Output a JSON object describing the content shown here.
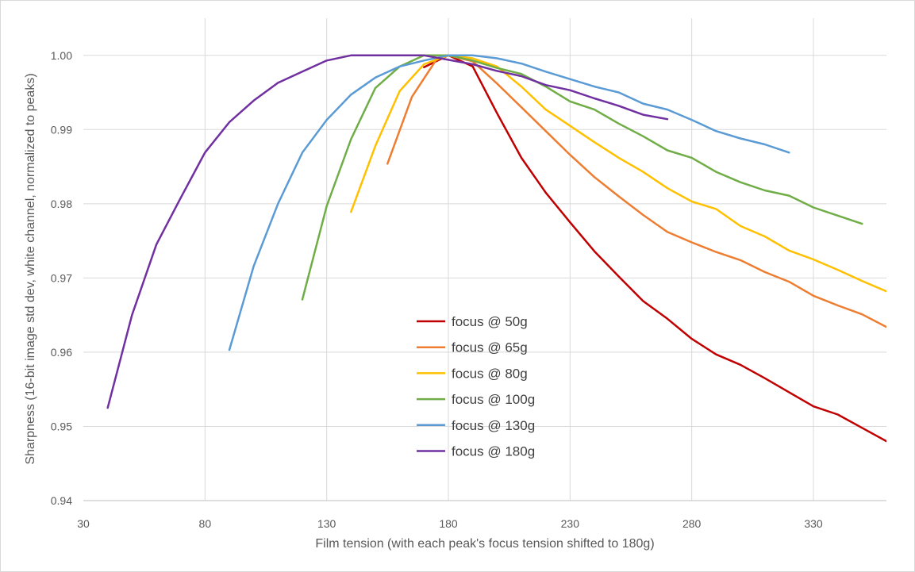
{
  "chart_data": {
    "type": "line",
    "title": "",
    "xlabel": "Film tension (with each peak's focus tension shifted to 180g)",
    "ylabel": "Sharpness (16-bit image std dev, white channel, normalized to peaks)",
    "xlim": [
      30,
      360
    ],
    "ylim": [
      0.94,
      1.005
    ],
    "x_ticks": [
      30,
      80,
      130,
      180,
      230,
      280,
      330
    ],
    "y_ticks": [
      0.94,
      0.95,
      0.96,
      0.97,
      0.98,
      0.99,
      1.0
    ],
    "x_tick_labels": [
      "30",
      "80",
      "130",
      "180",
      "230",
      "280",
      "330"
    ],
    "y_tick_labels": [
      "0.94",
      "0.95",
      "0.96",
      "0.97",
      "0.98",
      "0.99",
      "1.00"
    ],
    "grid": {
      "vertical": true,
      "horizontal": true
    },
    "legend": {
      "position": "center-bottom"
    },
    "series": [
      {
        "name": "focus @ 50g",
        "color": "#C00000",
        "points": [
          [
            170,
            0.9984
          ],
          [
            180,
            1.0
          ],
          [
            190,
            0.9985
          ],
          [
            200,
            0.9922
          ],
          [
            210,
            0.9862
          ],
          [
            220,
            0.9815
          ],
          [
            230,
            0.9775
          ],
          [
            240,
            0.9736
          ],
          [
            250,
            0.9702
          ],
          [
            260,
            0.9669
          ],
          [
            270,
            0.9645
          ],
          [
            280,
            0.9618
          ],
          [
            290,
            0.9597
          ],
          [
            300,
            0.9583
          ],
          [
            310,
            0.9565
          ],
          [
            320,
            0.9546
          ],
          [
            330,
            0.9527
          ],
          [
            340,
            0.9516
          ],
          [
            350,
            0.9498
          ],
          [
            360,
            0.948
          ]
        ]
      },
      {
        "name": "focus @ 65g",
        "color": "#ED7D31",
        "points": [
          [
            155,
            0.9854
          ],
          [
            165,
            0.9944
          ],
          [
            175,
            0.9994
          ],
          [
            180,
            1.0
          ],
          [
            190,
            0.9992
          ],
          [
            200,
            0.9962
          ],
          [
            210,
            0.993
          ],
          [
            220,
            0.9898
          ],
          [
            230,
            0.9866
          ],
          [
            240,
            0.9836
          ],
          [
            250,
            0.981
          ],
          [
            260,
            0.9785
          ],
          [
            270,
            0.9762
          ],
          [
            280,
            0.9748
          ],
          [
            290,
            0.9735
          ],
          [
            300,
            0.9724
          ],
          [
            310,
            0.9708
          ],
          [
            320,
            0.9695
          ],
          [
            330,
            0.9676
          ],
          [
            340,
            0.9663
          ],
          [
            350,
            0.9651
          ],
          [
            360,
            0.9634
          ],
          [
            365,
            0.9632
          ]
        ]
      },
      {
        "name": "focus @ 80g",
        "color": "#FFC000",
        "points": [
          [
            140,
            0.9789
          ],
          [
            150,
            0.9878
          ],
          [
            160,
            0.9952
          ],
          [
            170,
            0.9988
          ],
          [
            180,
            1.0
          ],
          [
            190,
            0.9996
          ],
          [
            200,
            0.9985
          ],
          [
            210,
            0.9958
          ],
          [
            220,
            0.9927
          ],
          [
            230,
            0.9905
          ],
          [
            240,
            0.9883
          ],
          [
            250,
            0.9862
          ],
          [
            260,
            0.9843
          ],
          [
            270,
            0.9821
          ],
          [
            280,
            0.9803
          ],
          [
            290,
            0.9793
          ],
          [
            300,
            0.977
          ],
          [
            310,
            0.9756
          ],
          [
            320,
            0.9737
          ],
          [
            330,
            0.9725
          ],
          [
            340,
            0.9711
          ],
          [
            350,
            0.9696
          ],
          [
            360,
            0.9682
          ]
        ]
      },
      {
        "name": "focus @ 100g",
        "color": "#70AD47",
        "points": [
          [
            120,
            0.9671
          ],
          [
            130,
            0.9797
          ],
          [
            140,
            0.9887
          ],
          [
            150,
            0.9956
          ],
          [
            160,
            0.9985
          ],
          [
            170,
            1.0
          ],
          [
            180,
            1.0
          ],
          [
            190,
            0.9993
          ],
          [
            200,
            0.9983
          ],
          [
            210,
            0.9975
          ],
          [
            220,
            0.9958
          ],
          [
            230,
            0.9938
          ],
          [
            240,
            0.9927
          ],
          [
            250,
            0.9908
          ],
          [
            260,
            0.9891
          ],
          [
            270,
            0.9872
          ],
          [
            280,
            0.9862
          ],
          [
            290,
            0.9843
          ],
          [
            300,
            0.9829
          ],
          [
            310,
            0.9818
          ],
          [
            320,
            0.9811
          ],
          [
            330,
            0.9795
          ],
          [
            340,
            0.9784
          ],
          [
            350,
            0.9773
          ]
        ]
      },
      {
        "name": "focus @ 130g",
        "color": "#5B9BD5",
        "points": [
          [
            90,
            0.9603
          ],
          [
            100,
            0.9716
          ],
          [
            110,
            0.98
          ],
          [
            120,
            0.9869
          ],
          [
            130,
            0.9913
          ],
          [
            140,
            0.9947
          ],
          [
            150,
            0.997
          ],
          [
            160,
            0.9985
          ],
          [
            170,
            0.9993
          ],
          [
            180,
            1.0
          ],
          [
            190,
            1.0
          ],
          [
            200,
            0.9996
          ],
          [
            210,
            0.9989
          ],
          [
            220,
            0.9978
          ],
          [
            230,
            0.9968
          ],
          [
            240,
            0.9958
          ],
          [
            250,
            0.995
          ],
          [
            260,
            0.9935
          ],
          [
            270,
            0.9927
          ],
          [
            280,
            0.9913
          ],
          [
            290,
            0.9898
          ],
          [
            300,
            0.9888
          ],
          [
            310,
            0.988
          ],
          [
            320,
            0.9869
          ]
        ]
      },
      {
        "name": "focus @ 180g",
        "color": "#7030A0",
        "points": [
          [
            40,
            0.9525
          ],
          [
            50,
            0.965
          ],
          [
            60,
            0.9745
          ],
          [
            70,
            0.9808
          ],
          [
            80,
            0.9869
          ],
          [
            90,
            0.991
          ],
          [
            100,
            0.9939
          ],
          [
            110,
            0.9963
          ],
          [
            120,
            0.9978
          ],
          [
            130,
            0.9993
          ],
          [
            140,
            1.0
          ],
          [
            150,
            1.0
          ],
          [
            160,
            1.0
          ],
          [
            170,
            1.0
          ],
          [
            180,
            0.9994
          ],
          [
            190,
            0.9988
          ],
          [
            200,
            0.9979
          ],
          [
            210,
            0.9972
          ],
          [
            220,
            0.996
          ],
          [
            230,
            0.9953
          ],
          [
            240,
            0.9942
          ],
          [
            250,
            0.9932
          ],
          [
            260,
            0.992
          ],
          [
            270,
            0.9914
          ]
        ]
      }
    ]
  }
}
